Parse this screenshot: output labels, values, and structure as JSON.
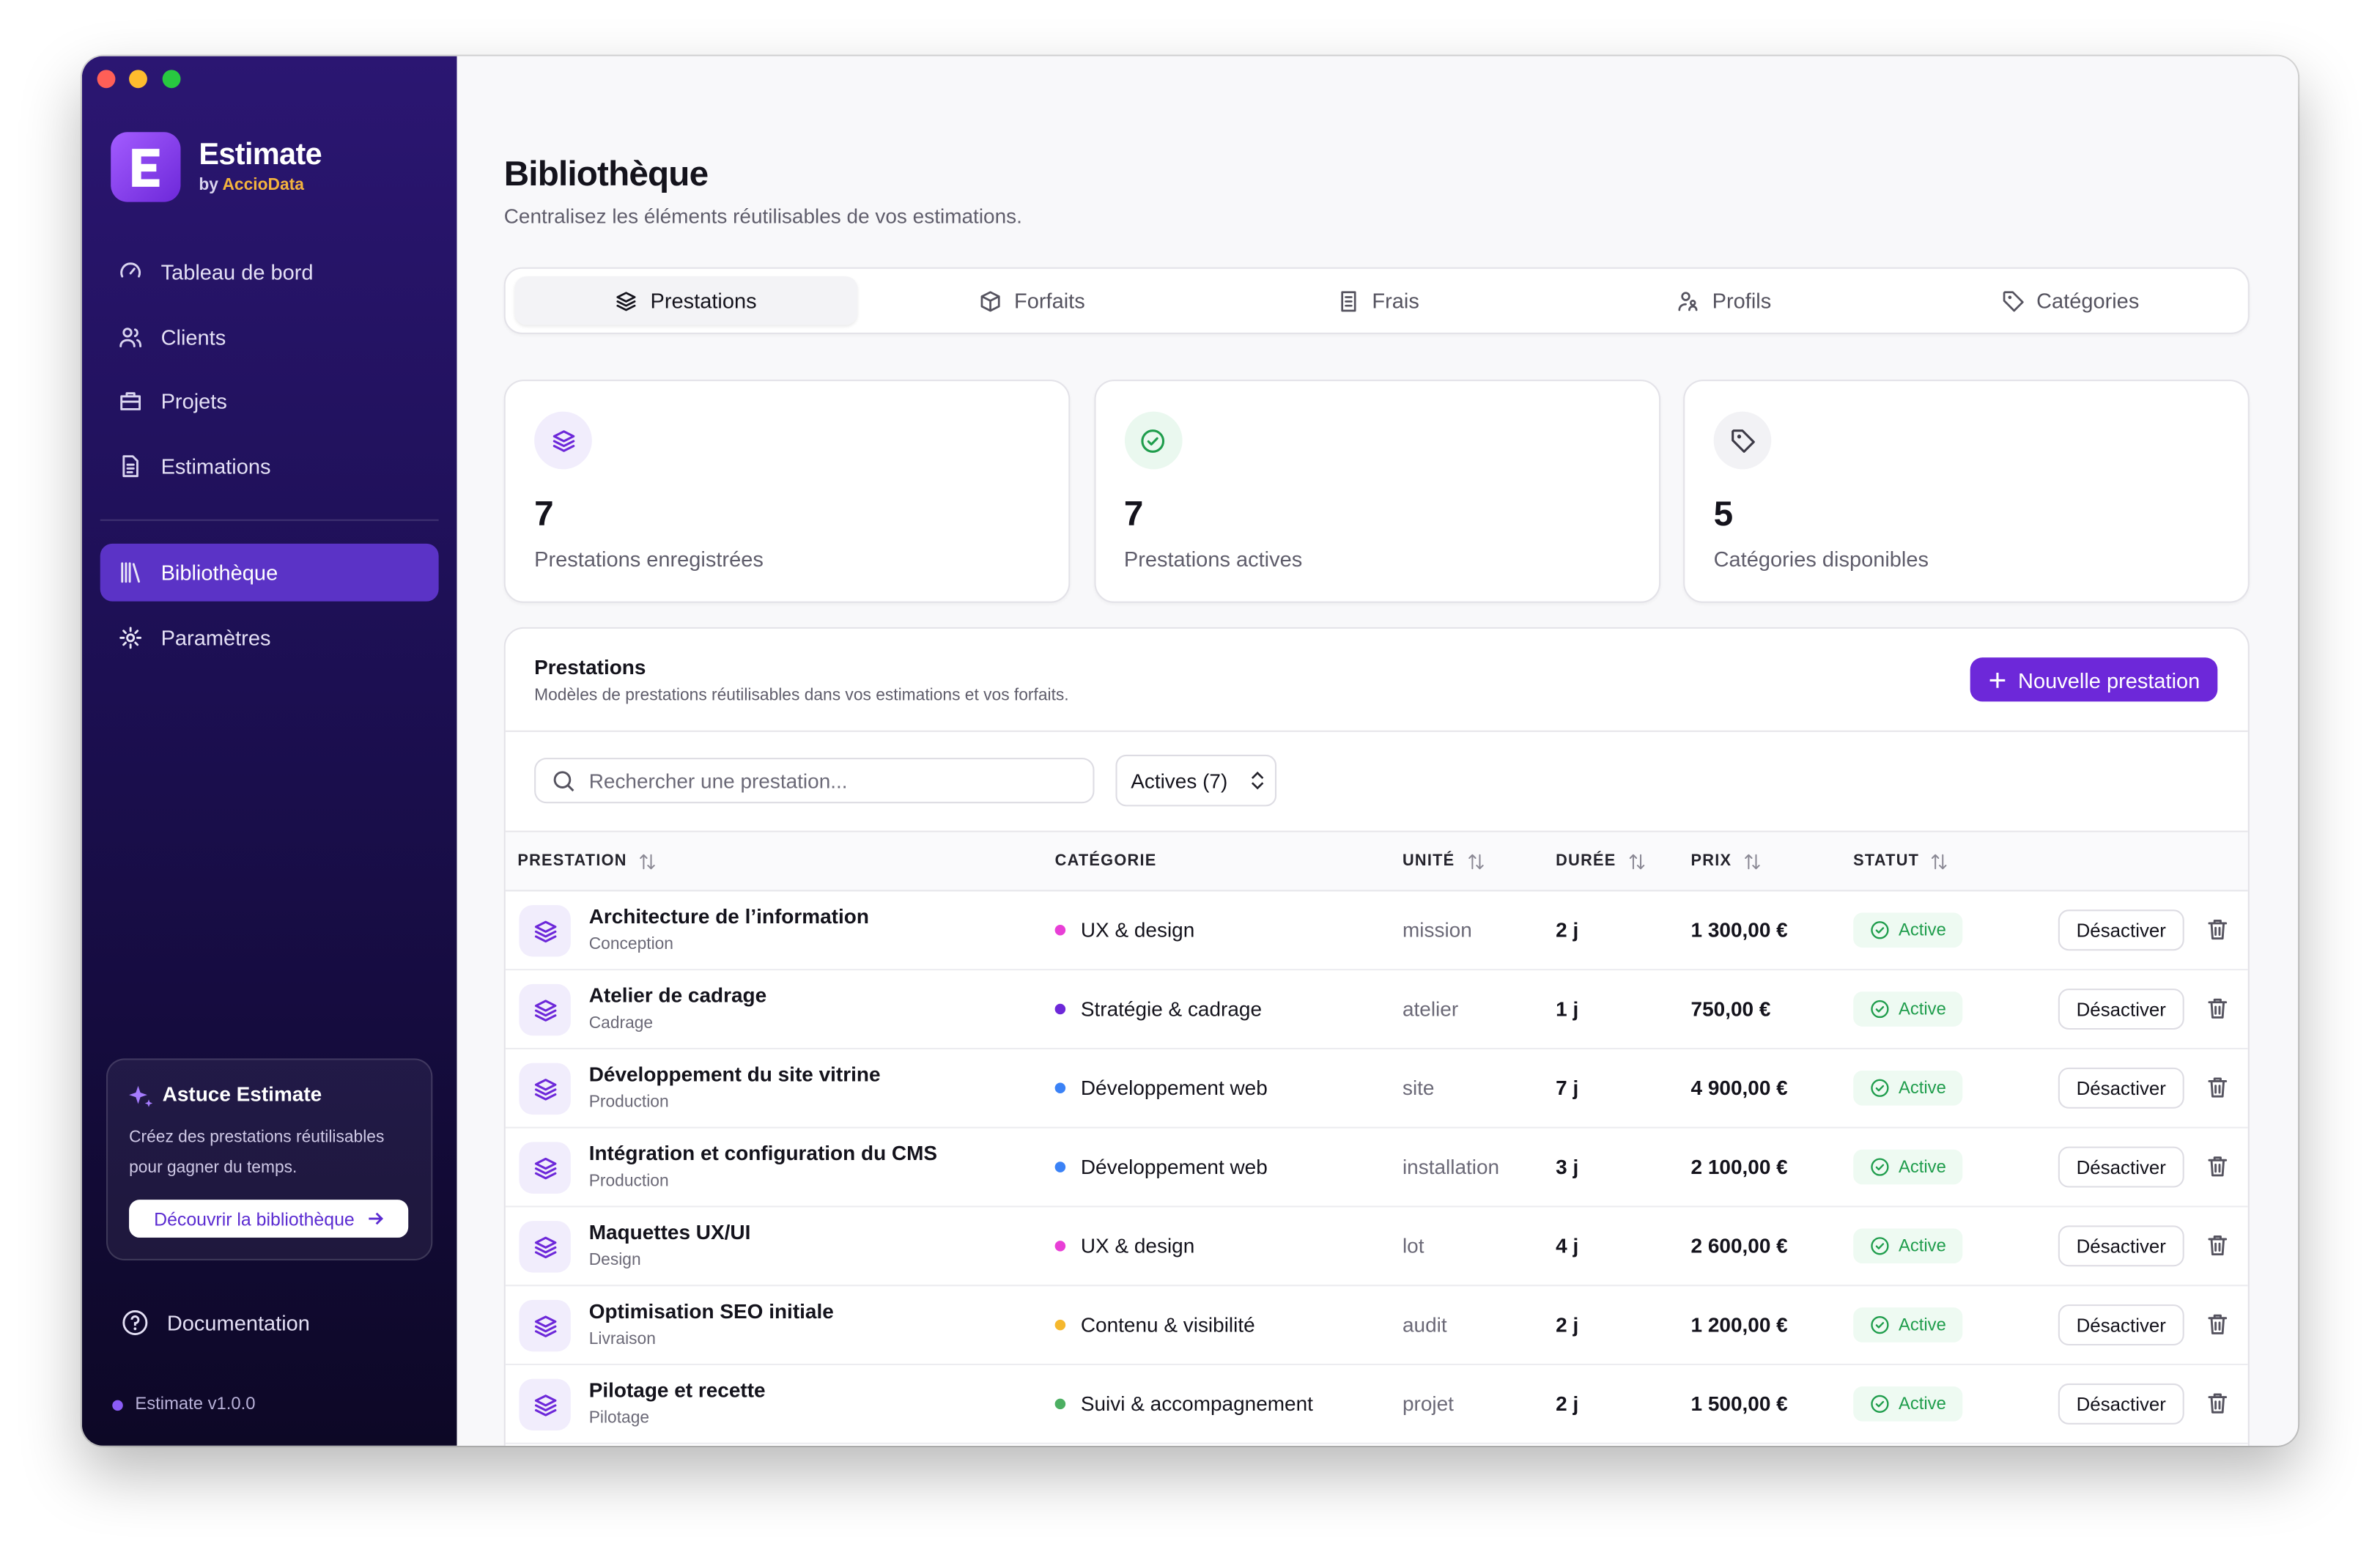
{
  "brand": {
    "name": "Estimate",
    "by": "by",
    "company": "AccioData"
  },
  "nav": {
    "main": [
      "Tableau de bord",
      "Clients",
      "Projets",
      "Estimations"
    ],
    "secondary": [
      "Bibliothèque",
      "Paramètres"
    ]
  },
  "tip": {
    "title": "Astuce Estimate",
    "text": "Créez des prestations réutilisables pour gagner du temps.",
    "button": "Découvrir la bibliothèque"
  },
  "footer": {
    "documentation": "Documentation",
    "version": "Estimate v1.0.0"
  },
  "header": {
    "title": "Bibliothèque",
    "subtitle": "Centralisez les éléments réutilisables de vos estimations."
  },
  "tabs": [
    "Prestations",
    "Forfaits",
    "Frais",
    "Profils",
    "Catégories"
  ],
  "stats": [
    {
      "value": 7,
      "label": "Prestations enregistrées"
    },
    {
      "value": 7,
      "label": "Prestations actives"
    },
    {
      "value": 5,
      "label": "Catégories disponibles"
    }
  ],
  "panel": {
    "title": "Prestations",
    "subtitle": "Modèles de prestations réutilisables dans vos estimations et vos forfaits.",
    "button": "Nouvelle prestation",
    "search_placeholder": "Rechercher une prestation...",
    "filter": "Actives (7)"
  },
  "table": {
    "columns": [
      "PRESTATION",
      "CATÉGORIE",
      "UNITÉ",
      "DURÉE",
      "PRIX",
      "STATUT"
    ],
    "rows": [
      {
        "name": "Architecture de l’information",
        "phase": "Conception",
        "category": "UX & design",
        "dot": "#e83fd6",
        "unit": "mission",
        "duration": "2 j",
        "price": "1 300,00 €",
        "status": "Active",
        "action": "Désactiver"
      },
      {
        "name": "Atelier de cadrage",
        "phase": "Cadrage",
        "category": "Stratégie & cadrage",
        "dot": "#6d28d9",
        "unit": "atelier",
        "duration": "1 j",
        "price": "750,00 €",
        "status": "Active",
        "action": "Désactiver"
      },
      {
        "name": "Développement du site vitrine",
        "phase": "Production",
        "category": "Développement web",
        "dot": "#3b82f6",
        "unit": "site",
        "duration": "7 j",
        "price": "4 900,00 €",
        "status": "Active",
        "action": "Désactiver"
      },
      {
        "name": "Intégration et configuration du CMS",
        "phase": "Production",
        "category": "Développement web",
        "dot": "#3b82f6",
        "unit": "installation",
        "duration": "3 j",
        "price": "2 100,00 €",
        "status": "Active",
        "action": "Désactiver"
      },
      {
        "name": "Maquettes UX/UI",
        "phase": "Design",
        "category": "UX & design",
        "dot": "#e83fd6",
        "unit": "lot",
        "duration": "4 j",
        "price": "2 600,00 €",
        "status": "Active",
        "action": "Désactiver"
      },
      {
        "name": "Optimisation SEO initiale",
        "phase": "Livraison",
        "category": "Contenu & visibilité",
        "dot": "#f5b82e",
        "unit": "audit",
        "duration": "2 j",
        "price": "1 200,00 €",
        "status": "Active",
        "action": "Désactiver"
      },
      {
        "name": "Pilotage et recette",
        "phase": "Pilotage",
        "category": "Suivi & accompagnement",
        "dot": "#4caf62",
        "unit": "projet",
        "duration": "2 j",
        "price": "1 500,00 €",
        "status": "Active",
        "action": "Désactiver"
      }
    ]
  }
}
